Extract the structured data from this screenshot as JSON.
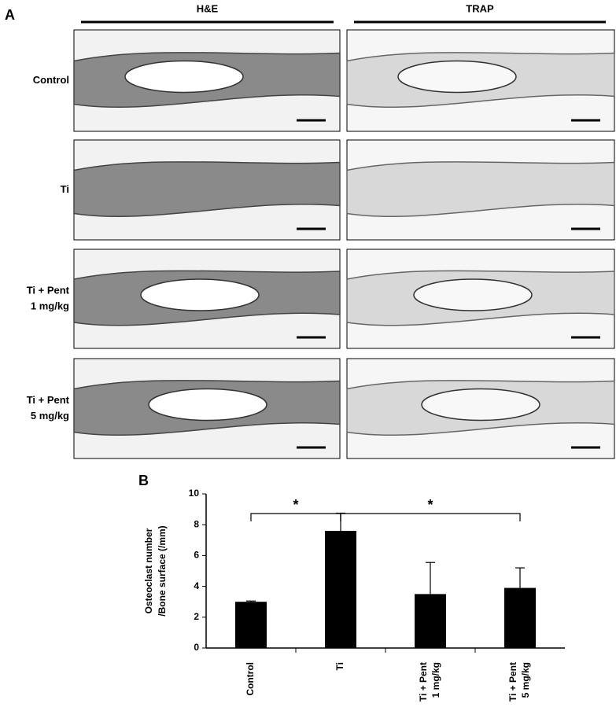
{
  "panel_a": {
    "label": "A",
    "columns": [
      "H&E",
      "TRAP"
    ],
    "rows": [
      [
        "Control"
      ],
      [
        "Ti"
      ],
      [
        "Ti + Pent",
        "1 mg/kg"
      ],
      [
        "Ti + Pent",
        "5 mg/kg"
      ]
    ]
  },
  "chart_data": {
    "type": "bar",
    "label": "B",
    "y_label": [
      "Osteoclast number",
      "/Bone surface (/mm)"
    ],
    "categories": [
      [
        "Control"
      ],
      [
        "Ti"
      ],
      [
        "Ti + Pent",
        "1 mg/kg"
      ],
      [
        "Ti + Pent",
        "5 mg/kg"
      ]
    ],
    "values": [
      3.0,
      7.6,
      3.5,
      3.9
    ],
    "errors": [
      0.05,
      1.15,
      2.05,
      1.3
    ],
    "color": "#000000",
    "ylim": [
      0,
      10
    ],
    "yticks": [
      0,
      2,
      4,
      6,
      8,
      10
    ],
    "significance": [
      {
        "from": 0,
        "to": 1,
        "label": "*"
      },
      {
        "from": 1,
        "to": 3,
        "label": "*"
      }
    ]
  }
}
